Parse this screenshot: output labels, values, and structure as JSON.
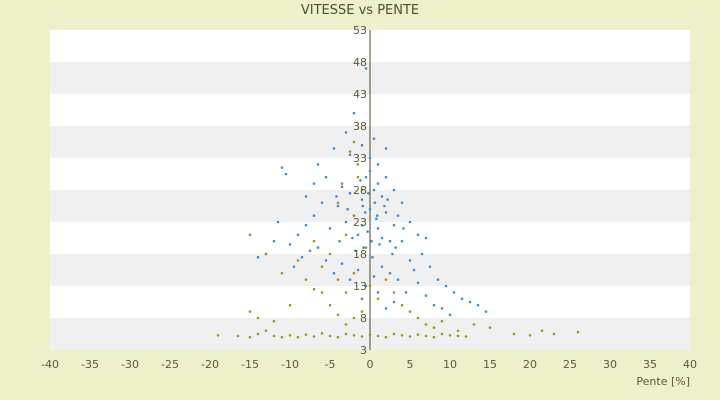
{
  "chart_data": {
    "type": "scatter",
    "title": "VITESSE vs PENTE",
    "xlabel": "Pente [%]",
    "ylabel": "",
    "xlim": [
      -40,
      40
    ],
    "ylim": [
      3,
      53
    ],
    "x_ticks": [
      -40,
      -35,
      -30,
      -25,
      -20,
      -15,
      -10,
      -5,
      0,
      5,
      10,
      15,
      20,
      25,
      30,
      35,
      40
    ],
    "x_tick_labels": [
      "-40",
      "-35",
      "-30",
      "-25",
      "-20",
      "-15",
      "-10",
      "-5",
      "0",
      "5",
      "10",
      "15",
      "20",
      "25",
      "30",
      "35",
      "40"
    ],
    "y_ticks": [
      3,
      8,
      13,
      18,
      23,
      28,
      33,
      38,
      43,
      48,
      53
    ],
    "y_tick_labels": [
      "3",
      "8",
      "13",
      "18",
      "23",
      "28",
      "33",
      "38",
      "43",
      "48",
      "53"
    ],
    "grid": "horizontal alternating bands",
    "legend": "none",
    "series": [
      {
        "color": "#3a8fd6",
        "points": [
          [
            -2.0,
            24.0
          ],
          [
            -1.0,
            26.5
          ],
          [
            0.0,
            25.0
          ],
          [
            1.0,
            22.0
          ],
          [
            -1.5,
            21.0
          ],
          [
            0.5,
            28.0
          ],
          [
            -0.5,
            30.0
          ],
          [
            2.0,
            24.5
          ],
          [
            -3.0,
            23.0
          ],
          [
            1.5,
            27.0
          ],
          [
            -0.8,
            19.0
          ],
          [
            0.3,
            17.5
          ],
          [
            2.5,
            20.0
          ],
          [
            -2.5,
            27.5
          ],
          [
            0.0,
            31.0
          ],
          [
            -1.2,
            29.5
          ],
          [
            1.2,
            19.5
          ],
          [
            3.0,
            22.5
          ],
          [
            -4.0,
            25.5
          ],
          [
            0.8,
            23.5
          ],
          [
            -0.3,
            21.5
          ],
          [
            1.8,
            25.5
          ],
          [
            -1.8,
            18.5
          ],
          [
            0.6,
            26.0
          ],
          [
            -2.2,
            20.5
          ],
          [
            2.8,
            18.0
          ],
          [
            -0.6,
            24.5
          ],
          [
            1.0,
            29.0
          ],
          [
            -3.5,
            28.5
          ],
          [
            3.5,
            24.0
          ],
          [
            -5.0,
            22.0
          ],
          [
            4.0,
            20.0
          ],
          [
            -6.0,
            26.0
          ],
          [
            5.0,
            17.0
          ],
          [
            -7.0,
            24.0
          ],
          [
            6.0,
            21.0
          ],
          [
            -8.0,
            22.5
          ],
          [
            7.0,
            20.5
          ],
          [
            -9.0,
            21.0
          ],
          [
            -10.5,
            30.5
          ],
          [
            -11.0,
            31.5
          ],
          [
            -12.0,
            20.0
          ],
          [
            -13.0,
            18.0
          ],
          [
            -14.0,
            17.5
          ],
          [
            -5.5,
            30.0
          ],
          [
            -6.5,
            32.0
          ],
          [
            -4.5,
            34.5
          ],
          [
            -3.0,
            37.0
          ],
          [
            -2.0,
            40.0
          ],
          [
            -0.5,
            47.0
          ],
          [
            0.0,
            33.0
          ],
          [
            1.0,
            32.0
          ],
          [
            2.0,
            30.0
          ],
          [
            3.0,
            28.0
          ],
          [
            4.0,
            26.0
          ],
          [
            5.0,
            23.0
          ],
          [
            6.5,
            18.0
          ],
          [
            7.5,
            16.0
          ],
          [
            8.5,
            14.0
          ],
          [
            9.5,
            13.0
          ],
          [
            10.5,
            12.0
          ],
          [
            11.5,
            11.0
          ],
          [
            12.5,
            10.5
          ],
          [
            13.5,
            10.0
          ],
          [
            14.5,
            9.0
          ],
          [
            4.5,
            12.0
          ],
          [
            3.5,
            14.0
          ],
          [
            2.5,
            15.0
          ],
          [
            1.5,
            16.0
          ],
          [
            0.5,
            14.5
          ],
          [
            -0.5,
            13.0
          ],
          [
            -1.5,
            15.5
          ],
          [
            -2.5,
            14.0
          ],
          [
            -3.5,
            16.5
          ],
          [
            -4.5,
            15.0
          ],
          [
            -5.5,
            17.0
          ],
          [
            -6.5,
            19.0
          ],
          [
            -7.5,
            18.5
          ],
          [
            -8.5,
            17.5
          ],
          [
            -9.5,
            16.0
          ],
          [
            -10.0,
            19.5
          ],
          [
            -11.5,
            23.0
          ],
          [
            -8.0,
            27.0
          ],
          [
            -7.0,
            29.0
          ],
          [
            -1.0,
            35.0
          ],
          [
            0.5,
            36.0
          ],
          [
            2.0,
            34.5
          ],
          [
            -2.5,
            33.5
          ],
          [
            1.5,
            20.5
          ],
          [
            -1.0,
            22.5
          ],
          [
            0.2,
            20.0
          ],
          [
            -0.2,
            27.5
          ],
          [
            0.9,
            24.0
          ],
          [
            -0.9,
            25.5
          ],
          [
            2.2,
            26.5
          ],
          [
            -2.8,
            25.0
          ],
          [
            3.2,
            19.0
          ],
          [
            -3.8,
            20.0
          ],
          [
            4.2,
            22.0
          ],
          [
            -4.2,
            27.0
          ],
          [
            5.5,
            15.5
          ],
          [
            6.0,
            13.5
          ],
          [
            7.0,
            11.5
          ],
          [
            8.0,
            10.0
          ],
          [
            9.0,
            9.5
          ],
          [
            10.0,
            8.5
          ],
          [
            1.0,
            12.0
          ],
          [
            -1.0,
            11.0
          ],
          [
            2.0,
            9.5
          ],
          [
            3.0,
            10.5
          ]
        ]
      },
      {
        "color": "#9a9a18",
        "points": [
          [
            -15.0,
            5.0
          ],
          [
            -14.0,
            5.5
          ],
          [
            -13.0,
            6.0
          ],
          [
            -12.0,
            5.2
          ],
          [
            -11.0,
            5.0
          ],
          [
            -10.0,
            5.3
          ],
          [
            -9.0,
            5.0
          ],
          [
            -8.0,
            5.4
          ],
          [
            -7.0,
            5.1
          ],
          [
            -6.0,
            5.6
          ],
          [
            -5.0,
            5.2
          ],
          [
            -4.0,
            5.0
          ],
          [
            -3.0,
            5.5
          ],
          [
            -2.0,
            5.3
          ],
          [
            -1.0,
            5.1
          ],
          [
            0.0,
            5.4
          ],
          [
            1.0,
            5.2
          ],
          [
            2.0,
            5.0
          ],
          [
            3.0,
            5.5
          ],
          [
            4.0,
            5.3
          ],
          [
            5.0,
            5.1
          ],
          [
            6.0,
            5.4
          ],
          [
            7.0,
            5.2
          ],
          [
            8.0,
            5.0
          ],
          [
            9.0,
            5.5
          ],
          [
            10.0,
            5.3
          ],
          [
            11.0,
            5.2
          ],
          [
            12.0,
            5.1
          ],
          [
            -19.0,
            5.3
          ],
          [
            -16.5,
            5.2
          ],
          [
            -15.0,
            9.0
          ],
          [
            -15.0,
            21.0
          ],
          [
            -13.0,
            18.0
          ],
          [
            -11.0,
            15.0
          ],
          [
            -9.0,
            17.0
          ],
          [
            -8.0,
            14.0
          ],
          [
            -7.0,
            20.0
          ],
          [
            -6.0,
            12.0
          ],
          [
            -5.0,
            10.0
          ],
          [
            -4.0,
            14.0
          ],
          [
            -3.0,
            12.0
          ],
          [
            -2.0,
            15.0
          ],
          [
            -1.5,
            32.0
          ],
          [
            -2.5,
            34.0
          ],
          [
            -3.5,
            29.0
          ],
          [
            -4.0,
            26.0
          ],
          [
            -1.0,
            28.0
          ],
          [
            -2.0,
            24.0
          ],
          [
            -3.0,
            21.0
          ],
          [
            -0.5,
            19.0
          ],
          [
            0.0,
            13.0
          ],
          [
            1.0,
            11.0
          ],
          [
            2.0,
            14.0
          ],
          [
            3.0,
            12.0
          ],
          [
            4.0,
            10.0
          ],
          [
            5.0,
            9.0
          ],
          [
            6.0,
            8.0
          ],
          [
            7.0,
            7.0
          ],
          [
            8.0,
            6.5
          ],
          [
            9.0,
            7.5
          ],
          [
            -1.0,
            9.0
          ],
          [
            -2.0,
            8.0
          ],
          [
            -3.0,
            7.0
          ],
          [
            -4.0,
            8.5
          ],
          [
            -6.0,
            16.0
          ],
          [
            -5.0,
            18.0
          ],
          [
            -7.0,
            12.5
          ],
          [
            -10.0,
            10.0
          ],
          [
            -12.0,
            7.5
          ],
          [
            -14.0,
            8.0
          ],
          [
            18.0,
            5.5
          ],
          [
            20.0,
            5.3
          ],
          [
            21.5,
            6.0
          ],
          [
            23.0,
            5.5
          ],
          [
            26.0,
            5.8
          ],
          [
            15.0,
            6.5
          ],
          [
            13.0,
            7.0
          ],
          [
            11.0,
            6.0
          ],
          [
            -1.5,
            30.0
          ],
          [
            -2.0,
            35.5
          ]
        ]
      }
    ]
  }
}
